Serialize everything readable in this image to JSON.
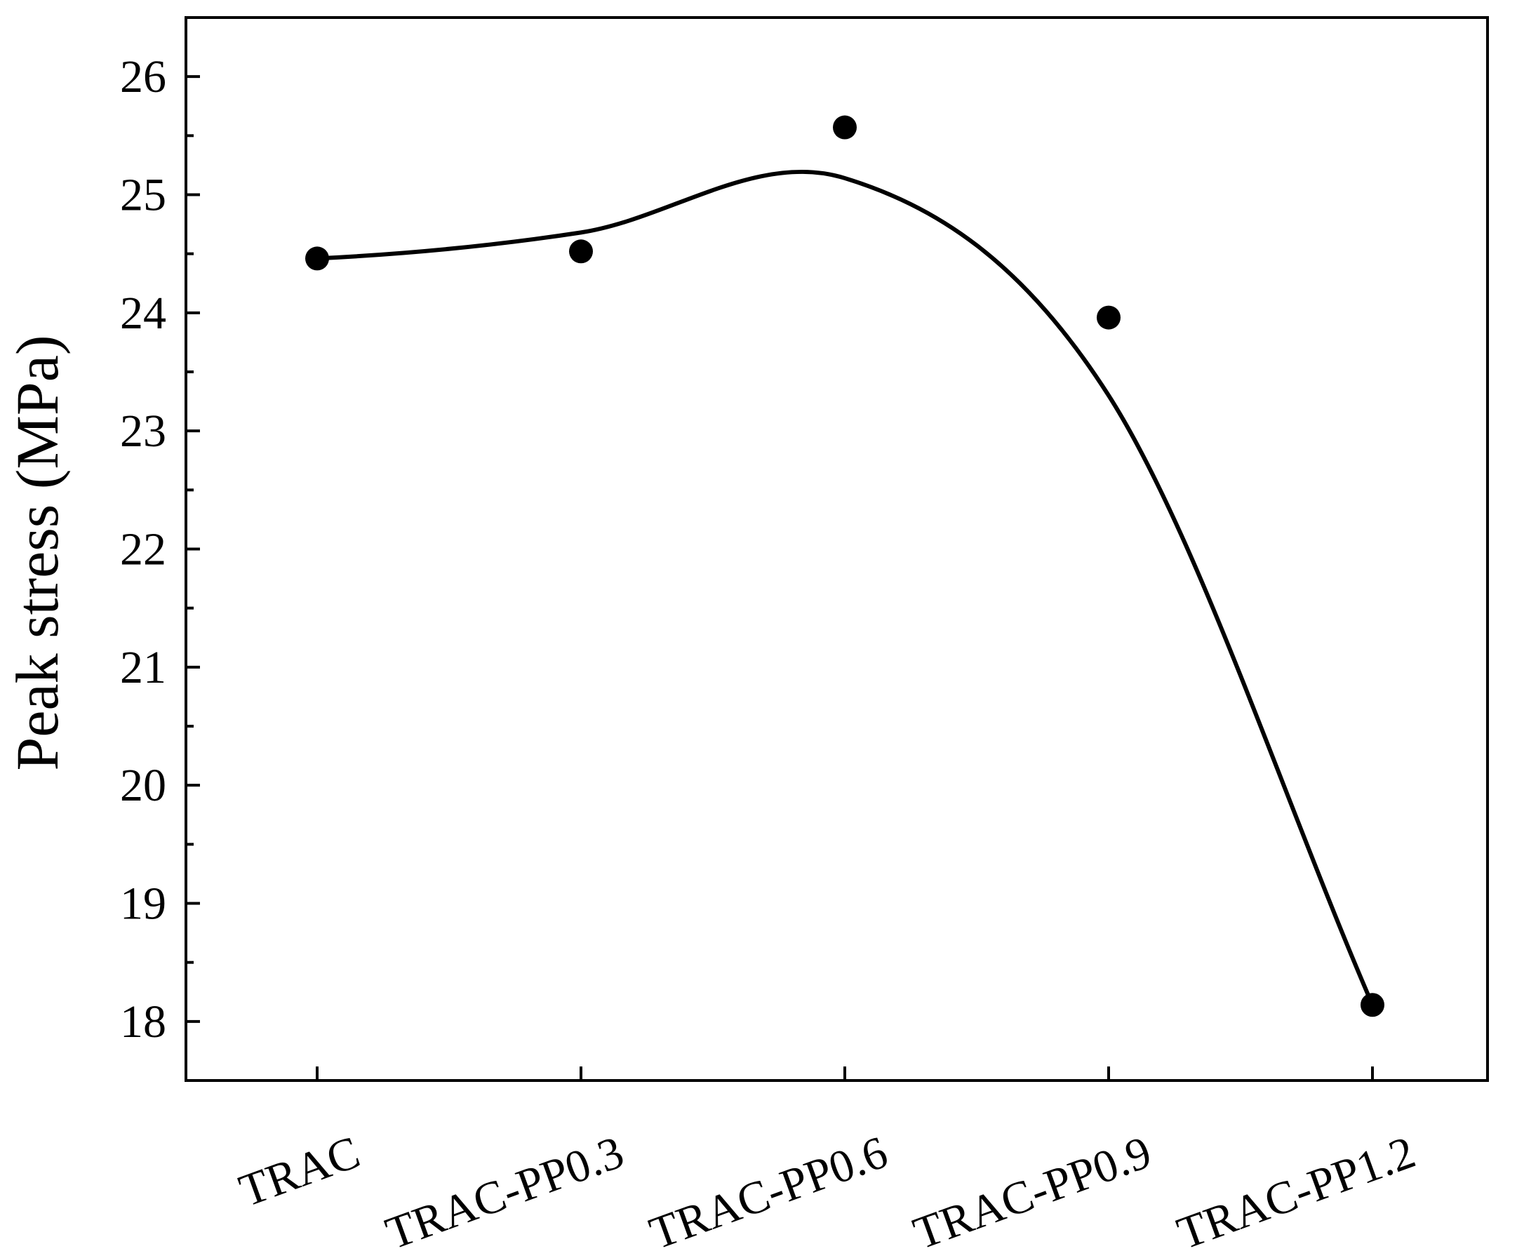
{
  "chart_data": {
    "type": "scatter",
    "title": "",
    "xlabel": "",
    "ylabel": "Peak stress (MPa)",
    "categories": [
      "TRAC",
      "TRAC-PP0.3",
      "TRAC-PP0.6",
      "TRAC-PP0.9",
      "TRAC-PP1.2"
    ],
    "series": [
      {
        "values": [
          24.46,
          24.52,
          25.57,
          23.96,
          18.14
        ],
        "marker": "filled-circle",
        "color": "#000000"
      }
    ],
    "fit_curve": {
      "shape": "smooth-spline",
      "color": "#000000",
      "values": [
        24.46,
        24.68,
        25.14,
        23.3,
        18.14
      ]
    },
    "ylim": [
      17.5,
      26.5
    ],
    "yticks": [
      "18",
      "19",
      "20",
      "21",
      "22",
      "23",
      "24",
      "25",
      "26"
    ],
    "y_minor_ticks": true,
    "grid": false,
    "legend": "none"
  }
}
